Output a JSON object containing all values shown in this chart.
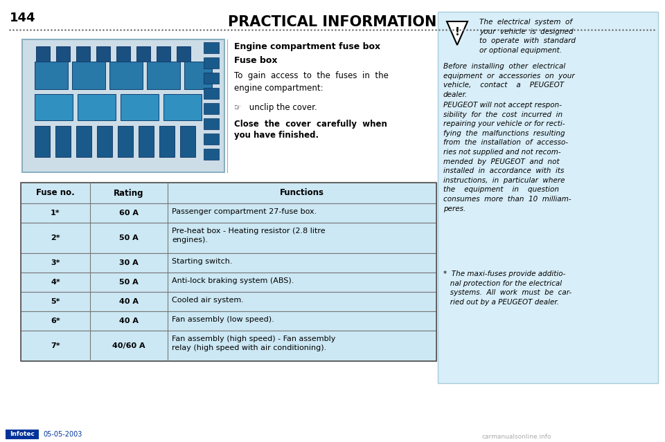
{
  "title": "PRACTICAL INFORMATION",
  "page_number": "144",
  "date": "05-05-2003",
  "background_color": "#ffffff",
  "section_title": "Engine compartment fuse box",
  "section_subtitle": "Fuse box",
  "section_body": "To  gain  access  to  the  fuses  in  the\nengine compartment:",
  "section_instruction": "☞   unclip the cover.",
  "section_bold_line1": "Close  the  cover  carefully  when",
  "section_bold_line2": "you have finished.",
  "table_header": [
    "Fuse no.",
    "Rating",
    "Functions"
  ],
  "table_rows": [
    [
      "1*",
      "60 A",
      "Passenger compartment 27-fuse box."
    ],
    [
      "2*",
      "50 A",
      "Pre-heat box - Heating resistor (2.8 litre\nengines)."
    ],
    [
      "3*",
      "30 A",
      "Starting switch."
    ],
    [
      "4*",
      "50 A",
      "Anti-lock braking system (ABS)."
    ],
    [
      "5*",
      "40 A",
      "Cooled air system."
    ],
    [
      "6*",
      "40 A",
      "Fan assembly (low speed)."
    ],
    [
      "7*",
      "40/60 A",
      "Fan assembly (high speed) - Fan assembly\nrelay (high speed with air conditioning)."
    ]
  ],
  "table_bg": "#cce8f4",
  "table_header_bg": "#cce8f4",
  "right_panel_bg": "#d8eef8",
  "right_panel_text1": "The  electrical  system  of\nyour  vehicle  is  designed\nto  operate  with  standard\nor optional equipment.",
  "right_panel_text2": "Before  installing  other  electrical\nequipment  or  accessories  on  your\nvehicle,    contact    a    PEUGEOT\ndealer.",
  "right_panel_text3": "PEUGEOT will not accept respon-\nsibility  for  the  cost  incurred  in\nrepairing your vehicle or for recti-\nfying  the  malfunctions  resulting\nfrom  the  installation  of  accesso-\nries not supplied and not recom-\nmended  by  PEUGEOT  and  not\ninstalled  in  accordance  with  its\ninstructions,  in  particular  where\nthe    equipment    in    question\nconsumes  more  than  10  milliam-\nperes.",
  "right_panel_text4": "*  The maxi-fuses provide additio-\n   nal protection for the electrical\n   systems.  All  work  must  be  car-\n   ried out by a PEUGEOT dealer.",
  "dotted_line_color": "#666666",
  "text_color": "#000000",
  "infotec_bg": "#003399",
  "infotec_text": "Infotec"
}
